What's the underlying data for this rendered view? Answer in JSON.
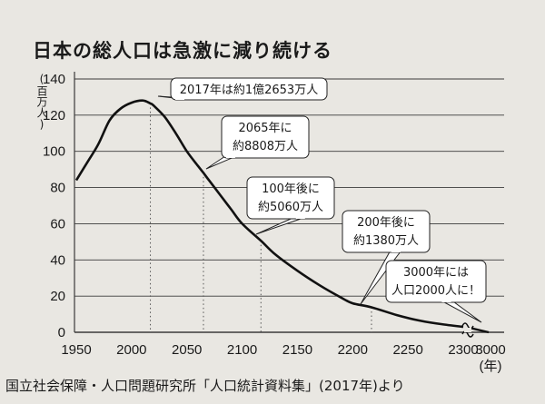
{
  "page": {
    "title": "日本の総人口は急激に減り続ける",
    "source": "国立社会保障・人口問題研究所「人口統計資料集」(2017年)より"
  },
  "chart_data": {
    "type": "line",
    "title": "日本の総人口は急激に減り続ける",
    "ylabel": "百万人",
    "xlabel": "年",
    "ylim": [
      0,
      140
    ],
    "x_ticks": [
      "1950",
      "2000",
      "2050",
      "2100",
      "2150",
      "2200",
      "2250",
      "2300",
      "3000"
    ],
    "y_ticks": [
      "0",
      "20",
      "40",
      "60",
      "80",
      "100",
      "120",
      "140"
    ],
    "grid": "horizontal",
    "axis_break": "2300-3000",
    "series": [
      {
        "x": [
          1950,
          1960,
          1970,
          1980,
          1990,
          2000,
          2010,
          2017,
          2020,
          2030,
          2040,
          2050,
          2060,
          2065,
          2070,
          2080,
          2090,
          2100,
          2117,
          2130,
          2150,
          2170,
          2190,
          2200,
          2217,
          2240,
          2260,
          2280,
          2300,
          3000
        ],
        "values": [
          84,
          94,
          104,
          117,
          123.6,
          126.9,
          128.1,
          126.5,
          125.3,
          119,
          110,
          100,
          92,
          88.1,
          84,
          76,
          68,
          60,
          50.6,
          43,
          34,
          26,
          19,
          16,
          13.8,
          9.5,
          6.5,
          4.5,
          3,
          0.02
        ]
      }
    ],
    "annotations": [
      {
        "x": 2017,
        "y": 126.5,
        "lines": [
          "2017年は約1億2653万人"
        ]
      },
      {
        "x": 2065,
        "y": 88.1,
        "lines": [
          "2065年に",
          "約8808万人"
        ]
      },
      {
        "x": 2117,
        "y": 50.6,
        "lines": [
          "100年後に",
          "約5060万人"
        ]
      },
      {
        "x": 2217,
        "y": 13.8,
        "lines": [
          "200年後に",
          "約1380万人"
        ]
      },
      {
        "x": 3000,
        "y": 0.02,
        "lines": [
          "3000年には",
          "人口2000人に！"
        ]
      }
    ]
  },
  "colors": {
    "background": "#e9e7e2",
    "line": "#111111",
    "grid": "#3a3a3a"
  }
}
